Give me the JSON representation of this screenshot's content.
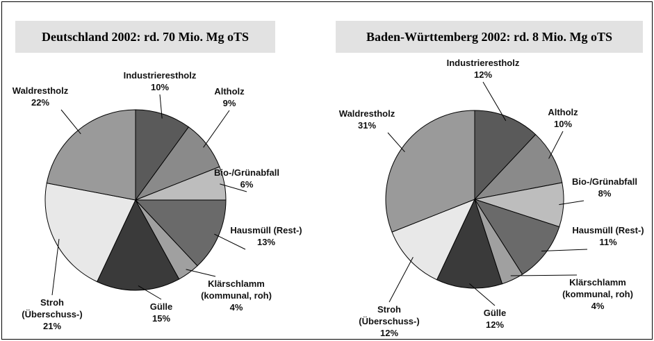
{
  "chart_data": [
    {
      "type": "pie",
      "title": "Deutschland 2002: rd. 70 Mio. Mg oTS",
      "categories": [
        "Industrierestholz",
        "Altholz",
        "Bio-/Grünabfall",
        "Hausmüll (Rest-)",
        "Klärschlamm (kommunal, roh)",
        "Gülle",
        "Stroh (Überschuss-)",
        "Waldrestholz"
      ],
      "values": [
        10,
        9,
        6,
        13,
        4,
        15,
        21,
        22
      ],
      "value_labels": [
        "10%",
        "9%",
        "6%",
        "13%",
        "4%",
        "15%",
        "21%",
        "22%"
      ],
      "colors": [
        "#5a5a5a",
        "#8a8a8a",
        "#bdbdbd",
        "#6a6a6a",
        "#a0a0a0",
        "#3a3a3a",
        "#e8e8e8",
        "#9a9a9a"
      ]
    },
    {
      "type": "pie",
      "title": "Baden-Württemberg 2002: rd. 8 Mio. Mg oTS",
      "categories": [
        "Industrierestholz",
        "Altholz",
        "Bio-/Grünabfall",
        "Hausmüll (Rest-)",
        "Klärschlamm (kommunal, roh)",
        "Gülle",
        "Stroh (Überschuss-)",
        "Waldrestholz"
      ],
      "values": [
        12,
        10,
        8,
        11,
        4,
        12,
        12,
        31
      ],
      "value_labels": [
        "12%",
        "10%",
        "8%",
        "11%",
        "4%",
        "12%",
        "12%",
        "31%"
      ],
      "colors": [
        "#5a5a5a",
        "#8a8a8a",
        "#bdbdbd",
        "#6a6a6a",
        "#a0a0a0",
        "#3a3a3a",
        "#e8e8e8",
        "#9a9a9a"
      ]
    }
  ]
}
